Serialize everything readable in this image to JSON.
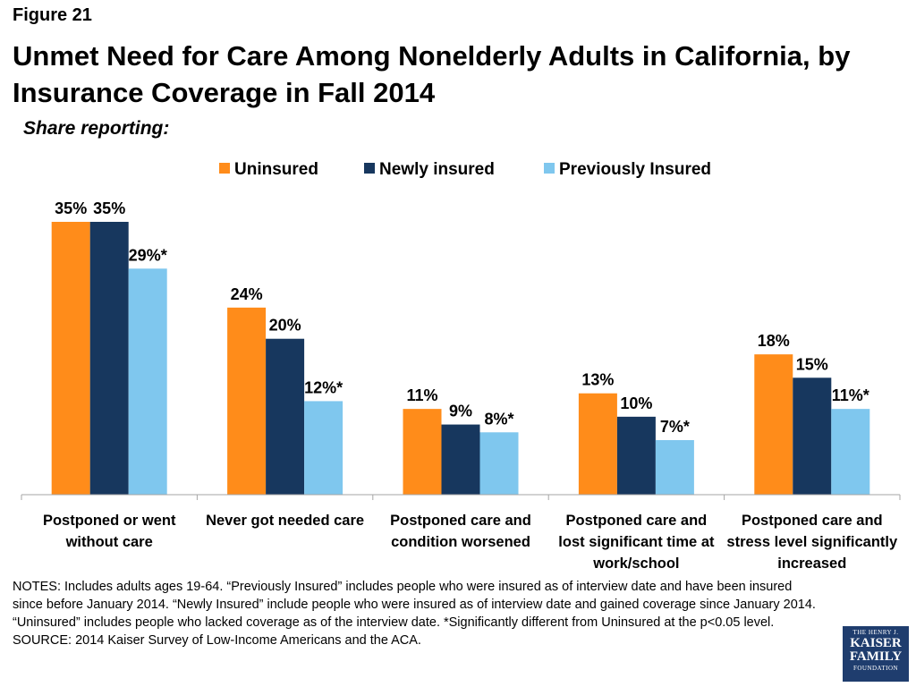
{
  "figure_label": "Figure 21",
  "title": "Unmet Need for Care Among Nonelderly Adults in California, by Insurance Coverage in Fall 2014",
  "subtitle": "Share reporting:",
  "notes": "NOTES: Includes adults ages 19-64. “Previously Insured” includes people who were insured as of interview date and have been insured since before January 2014. “Newly Insured” include people who were insured as of interview date and gained coverage since January 2014. “Uninsured” includes people who lacked coverage as of the interview date. *Significantly different from Uninsured at the p<0.05 level.",
  "source": "SOURCE: 2014 Kaiser Survey of Low-Income Americans and the ACA.",
  "logo": {
    "line1": "THE HENRY J.",
    "line2": "KAISER",
    "line3": "FAMILY",
    "line4": "FOUNDATION"
  },
  "chart_data": {
    "type": "bar",
    "title": "",
    "xlabel": "",
    "ylabel": "",
    "ylim": [
      0,
      35
    ],
    "grid": false,
    "legend_position": "top-center",
    "categories": [
      [
        "Postponed or went",
        "without care"
      ],
      [
        "Never got needed care"
      ],
      [
        "Postponed care and",
        "condition worsened"
      ],
      [
        "Postponed care and",
        "lost significant time at",
        "work/school"
      ],
      [
        "Postponed care and",
        "stress level significantly",
        "increased"
      ]
    ],
    "series": [
      {
        "name": "Uninsured",
        "color": "#FF8C1A",
        "values": [
          35,
          24,
          11,
          13,
          18
        ],
        "labels": [
          "35%",
          "24%",
          "11%",
          "13%",
          "18%"
        ]
      },
      {
        "name": "Newly insured",
        "color": "#17375E",
        "values": [
          35,
          20,
          9,
          10,
          15
        ],
        "labels": [
          "35%",
          "20%",
          "9%",
          "10%",
          "15%"
        ]
      },
      {
        "name": "Previously Insured",
        "color": "#7FC7EE",
        "values": [
          29,
          12,
          8,
          7,
          11
        ],
        "labels": [
          "29%*",
          "12%*",
          "8%*",
          "7%*",
          "11%*"
        ]
      }
    ]
  }
}
